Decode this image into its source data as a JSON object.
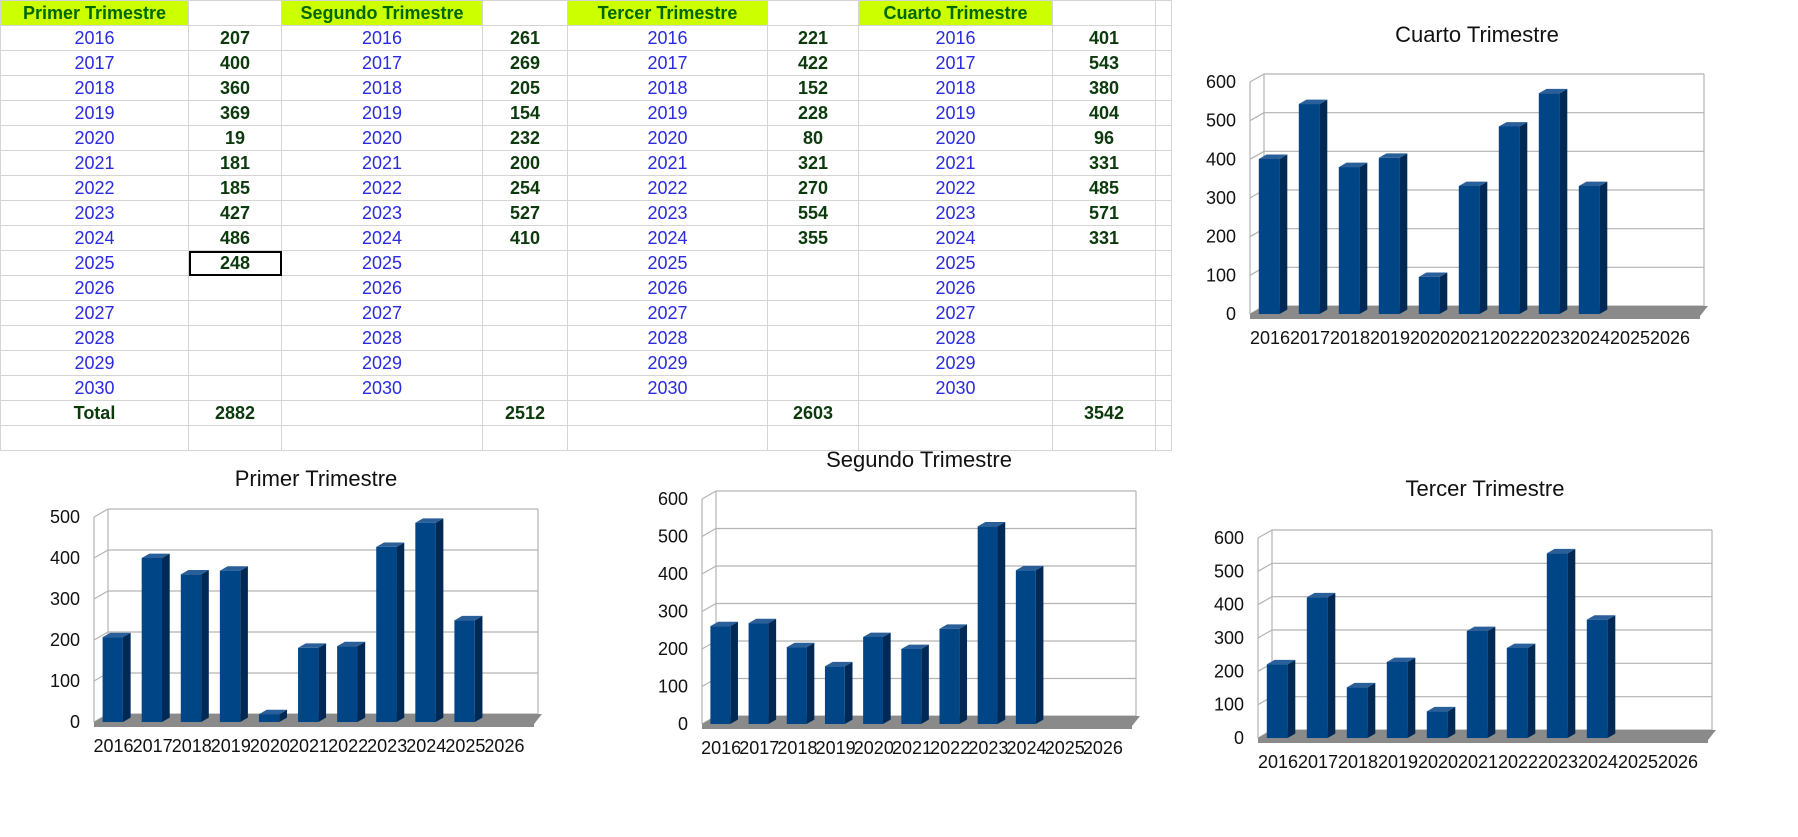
{
  "sheet": {
    "headers": [
      "Primer Trimestre",
      "Segundo Trimestre",
      "Tercer Trimestre",
      "Cuarto Trimestre"
    ],
    "years": [
      "2016",
      "2017",
      "2018",
      "2019",
      "2020",
      "2021",
      "2022",
      "2023",
      "2024",
      "2025",
      "2026",
      "2027",
      "2028",
      "2029",
      "2030"
    ],
    "values": [
      [
        "207",
        "400",
        "360",
        "369",
        "19",
        "181",
        "185",
        "427",
        "486",
        "248",
        "",
        "",
        "",
        "",
        ""
      ],
      [
        "261",
        "269",
        "205",
        "154",
        "232",
        "200",
        "254",
        "527",
        "410",
        "",
        "",
        "",
        "",
        "",
        ""
      ],
      [
        "221",
        "422",
        "152",
        "228",
        "80",
        "321",
        "270",
        "554",
        "355",
        "",
        "",
        "",
        "",
        "",
        ""
      ],
      [
        "401",
        "543",
        "380",
        "404",
        "96",
        "331",
        "485",
        "571",
        "331",
        "",
        "",
        "",
        "",
        "",
        ""
      ]
    ],
    "total_label": "Total",
    "totals": [
      "2882",
      "2512",
      "2603",
      "3542"
    ]
  },
  "colors": {
    "bar": "#004586",
    "bar_top": "#2a5f9a",
    "bar_side": "#002a55",
    "floor": "#8a8a8a",
    "header_bg": "#ccff00",
    "header_text": "#006600",
    "year_text": "#2a2ae0"
  },
  "chart_data": [
    {
      "id": "cuarto",
      "type": "bar",
      "title": "Cuarto Trimestre",
      "categories": [
        "2016",
        "2017",
        "2018",
        "2019",
        "2020",
        "2021",
        "2022",
        "2023",
        "2024",
        "2025",
        "2026"
      ],
      "values": [
        401,
        543,
        380,
        404,
        96,
        331,
        485,
        571,
        331,
        null,
        null
      ],
      "ylim": [
        0,
        600
      ],
      "yticks": [
        0,
        100,
        200,
        300,
        400,
        500,
        600
      ],
      "grid": true,
      "legend": "none"
    },
    {
      "id": "primer",
      "type": "bar",
      "title": "Primer Trimestre",
      "categories": [
        "2016",
        "2017",
        "2018",
        "2019",
        "2020",
        "2021",
        "2022",
        "2023",
        "2024",
        "2025",
        "2026"
      ],
      "values": [
        207,
        400,
        360,
        369,
        19,
        181,
        185,
        427,
        486,
        248,
        null
      ],
      "ylim": [
        0,
        500
      ],
      "yticks": [
        0,
        100,
        200,
        300,
        400,
        500
      ],
      "grid": true,
      "legend": "none"
    },
    {
      "id": "segundo",
      "type": "bar",
      "title": "Segundo Trimestre",
      "categories": [
        "2016",
        "2017",
        "2018",
        "2019",
        "2020",
        "2021",
        "2022",
        "2023",
        "2024",
        "2025",
        "2026"
      ],
      "values": [
        261,
        269,
        205,
        154,
        232,
        200,
        254,
        527,
        410,
        null,
        null
      ],
      "ylim": [
        0,
        600
      ],
      "yticks": [
        0,
        100,
        200,
        300,
        400,
        500,
        600
      ],
      "grid": true,
      "legend": "none"
    },
    {
      "id": "tercer",
      "type": "bar",
      "title": "Tercer Trimestre",
      "categories": [
        "2016",
        "2017",
        "2018",
        "2019",
        "2020",
        "2021",
        "2022",
        "2023",
        "2024",
        "2025",
        "2026"
      ],
      "values": [
        221,
        422,
        152,
        228,
        80,
        321,
        270,
        554,
        355,
        null,
        null
      ],
      "ylim": [
        0,
        600
      ],
      "yticks": [
        0,
        100,
        200,
        300,
        400,
        500,
        600
      ],
      "grid": true,
      "legend": "none"
    }
  ]
}
